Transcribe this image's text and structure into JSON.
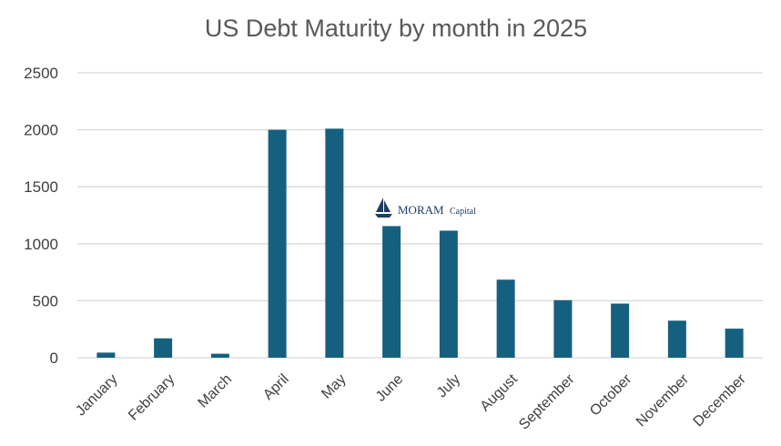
{
  "chart_data": {
    "type": "bar",
    "title": "US Debt Maturity by month in 2025",
    "categories": [
      "January",
      "February",
      "March",
      "April",
      "May",
      "June",
      "July",
      "August",
      "September",
      "October",
      "November",
      "December"
    ],
    "values": [
      45,
      170,
      35,
      2000,
      2010,
      1155,
      1115,
      685,
      505,
      475,
      325,
      255
    ],
    "yticks": [
      "0",
      "500",
      "1000",
      "1500",
      "2000",
      "2500"
    ],
    "ylim": [
      0,
      2500
    ],
    "grid": true,
    "bar_color": "#16607f",
    "xlabel": "",
    "ylabel": ""
  },
  "watermark": {
    "brand": "MORAM",
    "brand_suffix": "Capital",
    "icon": "sailboat-icon",
    "color": "#1f3b66"
  }
}
